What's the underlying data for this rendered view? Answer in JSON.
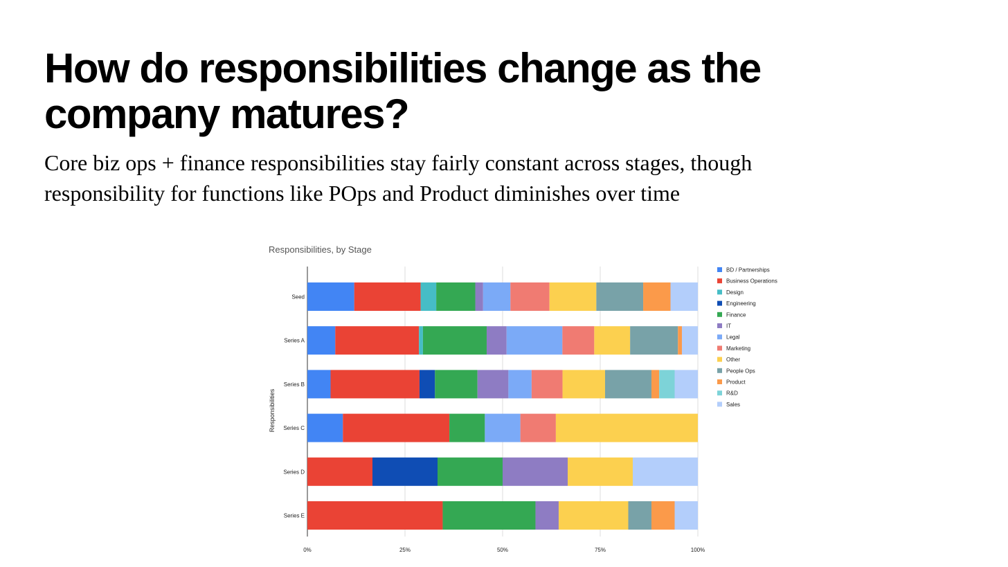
{
  "slide": {
    "heading": "How do responsibilities change as the company matures?",
    "subheading": "Core biz ops + finance responsibilities stay fairly constant across stages, though responsibility for functions like POps and Product diminishes over time"
  },
  "chart_data": {
    "type": "bar",
    "orientation": "horizontal",
    "stacked": "percent",
    "title": "Responsibilities, by Stage",
    "ylabel": "Responsibilities",
    "xlabel": "",
    "xlim": [
      0,
      1
    ],
    "xticks": [
      "0%",
      "25%",
      "50%",
      "75%",
      "100%"
    ],
    "grid": true,
    "legend_position": "right",
    "categories": [
      "Seed",
      "Series A",
      "Series B",
      "Series C",
      "Series D",
      "Series E"
    ],
    "series": [
      {
        "name": "BD / Partnerships",
        "color": "#4285F4",
        "values": [
          12,
          7,
          6,
          9,
          0,
          0
        ]
      },
      {
        "name": "Business Operations",
        "color": "#EA4335",
        "values": [
          17,
          21,
          23,
          27,
          17,
          35
        ]
      },
      {
        "name": "Design",
        "color": "#46BDC6",
        "values": [
          4,
          1,
          0,
          0,
          0,
          0
        ]
      },
      {
        "name": "Engineering",
        "color": "#0F4DB4",
        "values": [
          0,
          0,
          4,
          0,
          17,
          0
        ]
      },
      {
        "name": "Finance",
        "color": "#34A853",
        "values": [
          10,
          16,
          11,
          9,
          17,
          24
        ]
      },
      {
        "name": "IT",
        "color": "#8E7CC3",
        "values": [
          2,
          5,
          8,
          0,
          17,
          6
        ]
      },
      {
        "name": "Legal",
        "color": "#7BAAF7",
        "values": [
          7,
          14,
          6,
          9,
          0,
          0
        ]
      },
      {
        "name": "Marketing",
        "color": "#F07B72",
        "values": [
          10,
          8,
          8,
          9,
          0,
          0
        ]
      },
      {
        "name": "Other",
        "color": "#FCD04F",
        "values": [
          12,
          9,
          11,
          36,
          17,
          18
        ]
      },
      {
        "name": "People Ops",
        "color": "#78A2A8",
        "values": [
          12,
          12,
          12,
          0,
          0,
          6
        ]
      },
      {
        "name": "Product",
        "color": "#FB9A4A",
        "values": [
          7,
          1,
          2,
          0,
          0,
          6
        ]
      },
      {
        "name": "R&D",
        "color": "#7DD3D8",
        "values": [
          0,
          0,
          4,
          0,
          0,
          0
        ]
      },
      {
        "name": "Sales",
        "color": "#B3CEFB",
        "values": [
          7,
          4,
          6,
          0,
          17,
          6
        ]
      }
    ]
  }
}
